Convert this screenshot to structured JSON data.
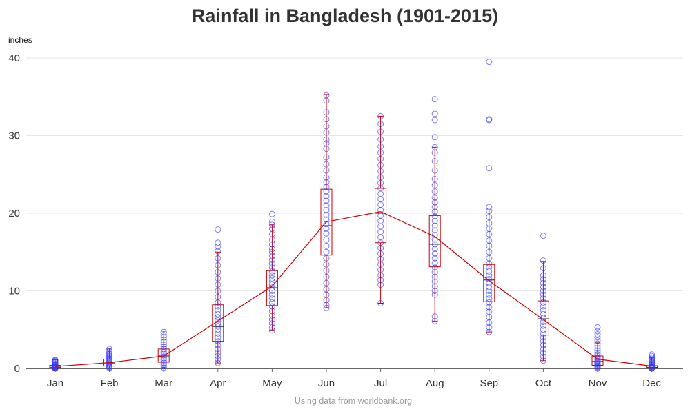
{
  "chart_data": {
    "type": "box",
    "title": "Rainfall in Bangladesh (1901-2015)",
    "ylabel": "inches",
    "xlabel": "",
    "credit": "Using data from worldbank.org",
    "ylim": [
      0,
      40
    ],
    "yticks": [
      0,
      10,
      20,
      30,
      40
    ],
    "grid": true,
    "colors": {
      "box": "#cc0000",
      "points": "#3333ff",
      "grid": "#e6e6e6",
      "axis": "#666666"
    },
    "categories": [
      "Jan",
      "Feb",
      "Mar",
      "Apr",
      "May",
      "Jun",
      "Jul",
      "Aug",
      "Sep",
      "Oct",
      "Nov",
      "Dec"
    ],
    "boxes": [
      {
        "month": "Jan",
        "min": 0.0,
        "q1": 0.05,
        "median": 0.15,
        "q3": 0.4,
        "max": 1.1
      },
      {
        "month": "Feb",
        "min": 0.05,
        "q1": 0.3,
        "median": 0.7,
        "q3": 1.2,
        "max": 2.5
      },
      {
        "month": "Mar",
        "min": 0.1,
        "q1": 0.8,
        "median": 1.6,
        "q3": 2.5,
        "max": 4.8
      },
      {
        "month": "Apr",
        "min": 0.7,
        "q1": 3.5,
        "median": 5.4,
        "q3": 8.2,
        "max": 15.0
      },
      {
        "month": "May",
        "min": 4.9,
        "q1": 8.1,
        "median": 10.4,
        "q3": 12.6,
        "max": 18.5
      },
      {
        "month": "Jun",
        "min": 7.8,
        "q1": 14.6,
        "median": 18.4,
        "q3": 23.1,
        "max": 35.3
      },
      {
        "month": "Jul",
        "min": 8.4,
        "q1": 16.2,
        "median": 20.0,
        "q3": 23.2,
        "max": 32.5
      },
      {
        "month": "Aug",
        "min": 6.1,
        "q1": 13.1,
        "median": 16.0,
        "q3": 19.7,
        "max": 28.5
      },
      {
        "month": "Sep",
        "min": 4.7,
        "q1": 8.6,
        "median": 11.4,
        "q3": 13.4,
        "max": 20.4
      },
      {
        "month": "Oct",
        "min": 1.0,
        "q1": 4.3,
        "median": 6.4,
        "q3": 8.7,
        "max": 13.8
      },
      {
        "month": "Nov",
        "min": 0.0,
        "q1": 0.4,
        "median": 0.9,
        "q3": 1.6,
        "max": 3.3
      },
      {
        "month": "Dec",
        "min": 0.0,
        "q1": 0.05,
        "median": 0.15,
        "q3": 0.35,
        "max": 1.4
      }
    ],
    "mean_line": [
      {
        "month": "Jan",
        "value": 0.25
      },
      {
        "month": "Feb",
        "value": 0.75
      },
      {
        "month": "Mar",
        "value": 1.6
      },
      {
        "month": "Apr",
        "value": 6.1
      },
      {
        "month": "May",
        "value": 10.6
      },
      {
        "month": "Jun",
        "value": 18.9
      },
      {
        "month": "Jul",
        "value": 20.2
      },
      {
        "month": "Aug",
        "value": 17.0
      },
      {
        "month": "Sep",
        "value": 11.3
      },
      {
        "month": "Oct",
        "value": 6.3
      },
      {
        "month": "Nov",
        "value": 1.2
      },
      {
        "month": "Dec",
        "value": 0.3
      }
    ],
    "points": {
      "Jan": [
        0.0,
        0.0,
        0.05,
        0.05,
        0.1,
        0.1,
        0.15,
        0.2,
        0.25,
        0.3,
        0.4,
        0.5,
        0.6,
        0.75,
        0.85,
        0.95,
        1.05,
        1.1
      ],
      "Feb": [
        0.05,
        0.15,
        0.25,
        0.35,
        0.5,
        0.65,
        0.8,
        0.95,
        1.1,
        1.25,
        1.4,
        1.55,
        1.7,
        1.85,
        2.0,
        2.2,
        2.5
      ],
      "Mar": [
        0.1,
        0.3,
        0.5,
        0.7,
        0.9,
        1.1,
        1.3,
        1.5,
        1.7,
        1.9,
        2.1,
        2.3,
        2.5,
        2.8,
        3.1,
        3.4,
        3.7,
        4.0,
        4.3,
        4.7
      ],
      "Apr": [
        0.7,
        1.2,
        1.6,
        2.0,
        2.5,
        3.0,
        3.5,
        4.0,
        4.5,
        5.0,
        5.4,
        5.8,
        6.2,
        6.6,
        7.0,
        7.5,
        8.0,
        8.5,
        9.2,
        10.0,
        10.8,
        11.6,
        12.4,
        13.3,
        14.2,
        15.1,
        15.7,
        16.2,
        17.9
      ],
      "May": [
        4.9,
        5.3,
        5.8,
        6.3,
        6.8,
        7.4,
        8.0,
        8.5,
        9.0,
        9.5,
        10.0,
        10.4,
        10.8,
        11.2,
        11.6,
        12.0,
        12.5,
        13.0,
        13.5,
        14.0,
        14.5,
        15.0,
        15.4,
        16.0,
        16.6,
        17.3,
        18.0,
        18.5,
        18.9,
        19.9
      ],
      "Jun": [
        7.8,
        8.2,
        8.8,
        9.5,
        10.2,
        11.0,
        11.8,
        12.6,
        13.4,
        14.2,
        15.0,
        15.8,
        16.6,
        17.4,
        18.0,
        18.6,
        19.2,
        19.8,
        20.4,
        21.0,
        21.6,
        22.2,
        22.8,
        23.4,
        24.0,
        24.6,
        25.5,
        26.3,
        27.2,
        28.3,
        29.0,
        29.5,
        30.4,
        31.2,
        32.1,
        33.0,
        34.5,
        35.2
      ],
      "Jul": [
        8.4,
        10.8,
        11.4,
        12.0,
        12.7,
        13.4,
        14.1,
        14.8,
        15.5,
        16.2,
        16.9,
        17.6,
        18.3,
        19.0,
        19.7,
        20.4,
        21.1,
        21.8,
        22.5,
        23.2,
        23.9,
        24.6,
        25.4,
        26.2,
        27.0,
        27.8,
        28.6,
        29.5,
        30.5,
        31.5,
        32.5
      ],
      "Aug": [
        6.1,
        6.7,
        9.5,
        10.0,
        10.6,
        11.2,
        11.8,
        12.4,
        13.0,
        13.6,
        14.2,
        14.8,
        15.4,
        16.0,
        16.6,
        17.2,
        17.8,
        18.4,
        19.0,
        19.6,
        20.2,
        20.8,
        21.4,
        22.0,
        22.8,
        23.6,
        24.4,
        25.5,
        26.7,
        27.8,
        28.5,
        29.8,
        32.0,
        32.8,
        34.7
      ],
      "Sep": [
        4.7,
        5.3,
        5.9,
        6.6,
        7.3,
        7.9,
        8.5,
        9.0,
        9.5,
        10.0,
        10.5,
        11.0,
        11.5,
        12.0,
        12.5,
        13.0,
        13.5,
        14.2,
        15.0,
        15.8,
        16.5,
        17.3,
        18.0,
        18.7,
        19.5,
        20.3,
        20.8,
        25.8,
        32.0,
        32.1,
        39.5
      ],
      "Oct": [
        1.0,
        1.5,
        2.0,
        2.5,
        3.0,
        3.5,
        4.0,
        4.5,
        5.0,
        5.5,
        6.0,
        6.5,
        7.0,
        7.5,
        8.0,
        8.5,
        9.0,
        9.5,
        10.0,
        10.5,
        11.0,
        11.5,
        12.0,
        12.9,
        13.9,
        17.1
      ],
      "Nov": [
        0.0,
        0.1,
        0.2,
        0.3,
        0.4,
        0.5,
        0.6,
        0.7,
        0.8,
        0.9,
        1.0,
        1.2,
        1.4,
        1.6,
        1.8,
        2.0,
        2.3,
        2.6,
        2.9,
        3.2,
        3.6,
        4.0,
        4.4,
        4.8,
        5.3
      ],
      "Dec": [
        0.0,
        0.0,
        0.05,
        0.1,
        0.15,
        0.2,
        0.3,
        0.4,
        0.5,
        0.65,
        0.8,
        0.95,
        1.1,
        1.25,
        1.4,
        1.6,
        1.8
      ]
    }
  }
}
